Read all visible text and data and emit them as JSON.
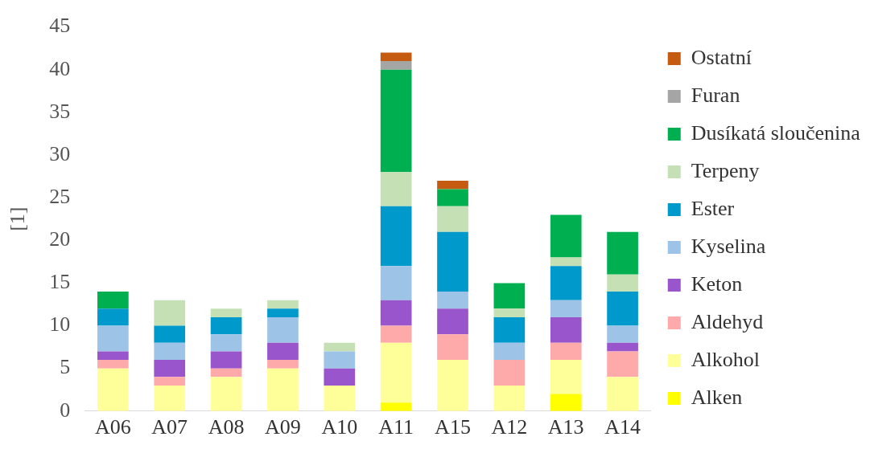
{
  "chart_data": {
    "type": "bar",
    "stacked": true,
    "ylabel": "[1]",
    "categories": [
      "A06",
      "A07",
      "A08",
      "A09",
      "A10",
      "A11",
      "A15",
      "A12",
      "A13",
      "A14"
    ],
    "ylim": [
      0,
      45
    ],
    "yticks": [
      0,
      5,
      10,
      15,
      20,
      25,
      30,
      35,
      40,
      45
    ],
    "grid": false,
    "legend": "right",
    "series": [
      {
        "name": "Alken",
        "color": "#ffff00",
        "values": [
          0,
          0,
          0,
          0,
          0,
          1,
          0,
          0,
          2,
          0
        ]
      },
      {
        "name": "Alkohol",
        "color": "#ffff99",
        "values": [
          5,
          3,
          4,
          5,
          3,
          7,
          6,
          3,
          4,
          4
        ]
      },
      {
        "name": "Aldehyd",
        "color": "#ffaaaa",
        "values": [
          1,
          1,
          1,
          1,
          0,
          2,
          3,
          3,
          2,
          3
        ]
      },
      {
        "name": "Keton",
        "color": "#9955cc",
        "values": [
          1,
          2,
          2,
          2,
          2,
          3,
          3,
          0,
          3,
          1
        ]
      },
      {
        "name": "Kyselina",
        "color": "#9dc3e6",
        "values": [
          3,
          2,
          2,
          3,
          2,
          4,
          2,
          2,
          2,
          2
        ]
      },
      {
        "name": "Ester",
        "color": "#0099cc",
        "values": [
          2,
          2,
          2,
          1,
          0,
          7,
          7,
          3,
          4,
          4
        ]
      },
      {
        "name": "Terpeny",
        "color": "#c5e0b4",
        "values": [
          0,
          3,
          1,
          1,
          1,
          4,
          3,
          1,
          1,
          2
        ]
      },
      {
        "name": "Dusíkatá sloučenina",
        "color": "#00b050",
        "values": [
          2,
          0,
          0,
          0,
          0,
          12,
          2,
          3,
          5,
          5
        ]
      },
      {
        "name": "Furan",
        "color": "#a5a5a5",
        "values": [
          0,
          0,
          0,
          0,
          0,
          1,
          0,
          0,
          0,
          0
        ]
      },
      {
        "name": "Ostatní",
        "color": "#c55a11",
        "values": [
          0,
          0,
          0,
          0,
          0,
          1,
          1,
          0,
          0,
          0
        ]
      }
    ]
  }
}
